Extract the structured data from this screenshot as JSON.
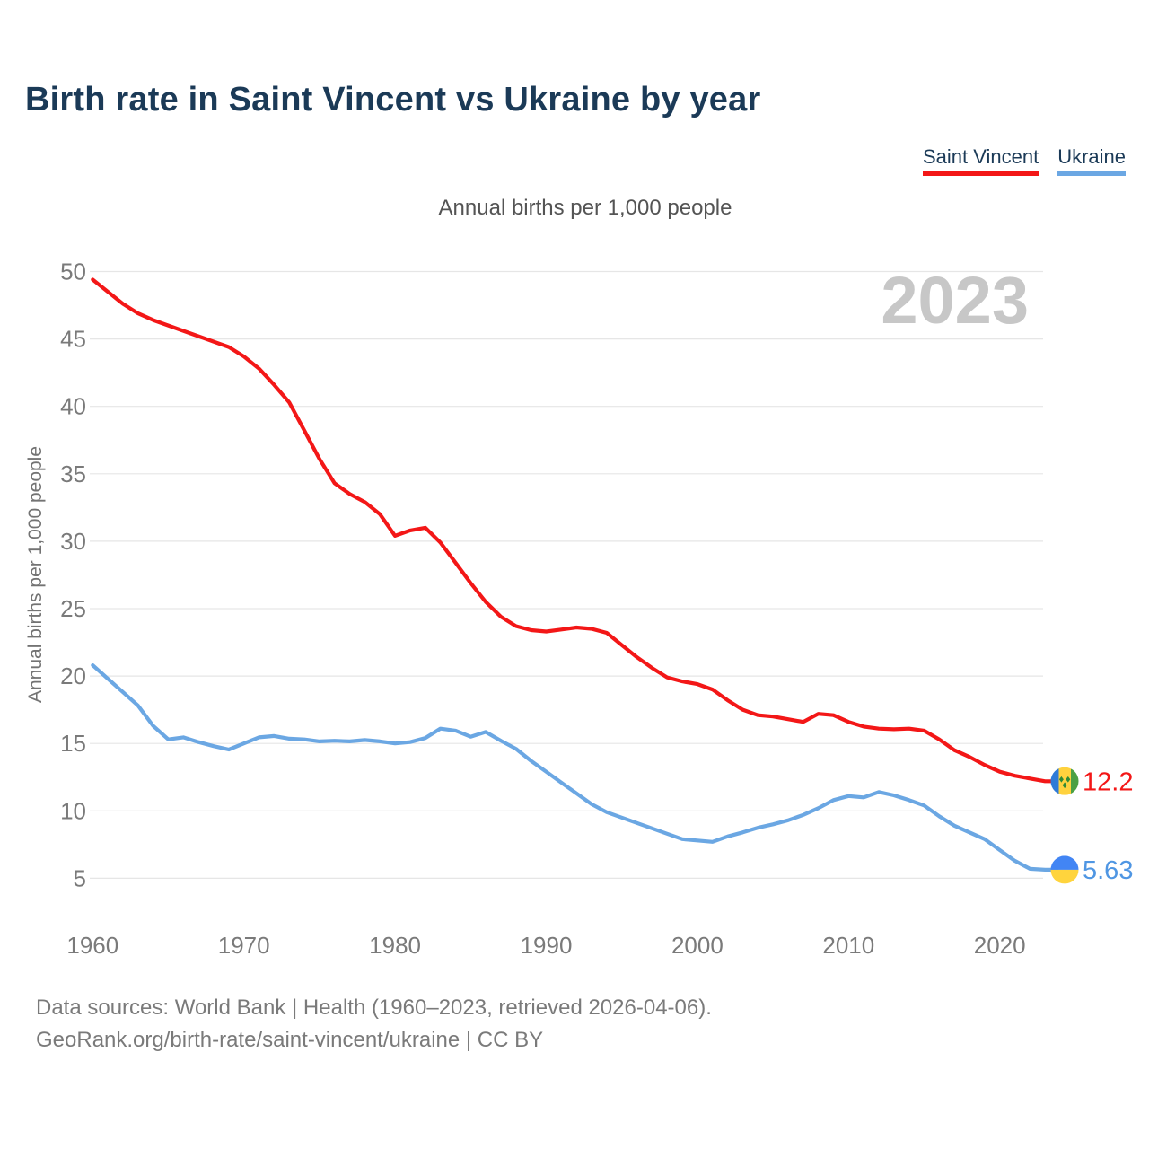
{
  "header": {
    "title": "Birth rate in Saint Vincent vs Ukraine by year"
  },
  "legend": {
    "items": [
      {
        "label": "Saint Vincent",
        "color": "#f31717"
      },
      {
        "label": "Ukraine",
        "color": "#6ba7e3"
      }
    ]
  },
  "subtitle": "Annual births per 1,000 people",
  "watermark": "2023",
  "footer": {
    "line1": "Data sources: World Bank | Health (1960–2023, retrieved 2026-04-06).",
    "line2": "GeoRank.org/birth-rate/saint-vincent/ukraine | CC BY"
  },
  "chart_data": {
    "type": "line",
    "title": "Annual births per 1,000 people",
    "xlabel": "",
    "ylabel": "Annual births per 1,000 people",
    "xlim": [
      1960,
      2023
    ],
    "ylim": [
      5,
      50
    ],
    "grid": true,
    "legend_position": "top-right",
    "watermark": "2023",
    "y_ticks": [
      5,
      10,
      15,
      20,
      25,
      30,
      35,
      40,
      45,
      50
    ],
    "x_ticks": [
      1960,
      1970,
      1980,
      1990,
      2000,
      2010,
      2020
    ],
    "x": [
      1960,
      1961,
      1962,
      1963,
      1964,
      1965,
      1966,
      1967,
      1968,
      1969,
      1970,
      1971,
      1972,
      1973,
      1974,
      1975,
      1976,
      1977,
      1978,
      1979,
      1980,
      1981,
      1982,
      1983,
      1984,
      1985,
      1986,
      1987,
      1988,
      1989,
      1990,
      1991,
      1992,
      1993,
      1994,
      1995,
      1996,
      1997,
      1998,
      1999,
      2000,
      2001,
      2002,
      2003,
      2004,
      2005,
      2006,
      2007,
      2008,
      2009,
      2010,
      2011,
      2012,
      2013,
      2014,
      2015,
      2016,
      2017,
      2018,
      2019,
      2020,
      2021,
      2022,
      2023
    ],
    "series": [
      {
        "name": "Saint Vincent",
        "color": "#f31717",
        "end_label": "12.2",
        "flag": "saint_vincent",
        "values": [
          49.4,
          48.5,
          47.6,
          46.9,
          46.4,
          46.0,
          45.6,
          45.2,
          44.8,
          44.4,
          43.7,
          42.8,
          41.6,
          40.3,
          38.2,
          36.1,
          34.3,
          33.5,
          32.9,
          32.0,
          30.4,
          30.8,
          31.0,
          29.9,
          28.4,
          26.9,
          25.5,
          24.4,
          23.7,
          23.4,
          23.3,
          23.45,
          23.6,
          23.5,
          23.2,
          22.3,
          21.4,
          20.6,
          19.9,
          19.6,
          19.4,
          19.0,
          18.2,
          17.5,
          17.1,
          17.0,
          16.8,
          16.6,
          17.2,
          17.1,
          16.6,
          16.25,
          16.1,
          16.05,
          16.1,
          15.95,
          15.3,
          14.5,
          14.0,
          13.4,
          12.9,
          12.6,
          12.4,
          12.2
        ]
      },
      {
        "name": "Ukraine",
        "color": "#6ba7e3",
        "end_label": "5.63",
        "flag": "ukraine",
        "values": [
          20.8,
          19.8,
          18.8,
          17.8,
          16.3,
          15.3,
          15.45,
          15.1,
          14.8,
          14.55,
          15.0,
          15.45,
          15.55,
          15.35,
          15.3,
          15.15,
          15.2,
          15.15,
          15.25,
          15.15,
          15.0,
          15.1,
          15.4,
          16.1,
          15.95,
          15.5,
          15.85,
          15.2,
          14.6,
          13.7,
          12.9,
          12.1,
          11.3,
          10.5,
          9.9,
          9.5,
          9.1,
          8.7,
          8.3,
          7.9,
          7.8,
          7.7,
          8.1,
          8.4,
          8.75,
          9.0,
          9.3,
          9.7,
          10.2,
          10.8,
          11.1,
          11.0,
          11.4,
          11.15,
          10.8,
          10.4,
          9.6,
          8.9,
          8.4,
          7.9,
          7.1,
          6.3,
          5.7,
          5.63
        ]
      }
    ]
  },
  "colors": {
    "grid": "#e6e6e6",
    "tick_label": "#7a7a7a",
    "axis_title": "#737373",
    "watermark": "#c7c7c7",
    "end_label_saint_vincent": "#f31717",
    "end_label_ukraine": "#4f96e3"
  },
  "flags": {
    "saint_vincent": {
      "blue": "#2f7bd8",
      "gold": "#ffd23e",
      "green": "#4ba045",
      "diamond": "#2f8a35"
    },
    "ukraine": {
      "blue": "#4285f4",
      "gold": "#ffd43d"
    }
  }
}
